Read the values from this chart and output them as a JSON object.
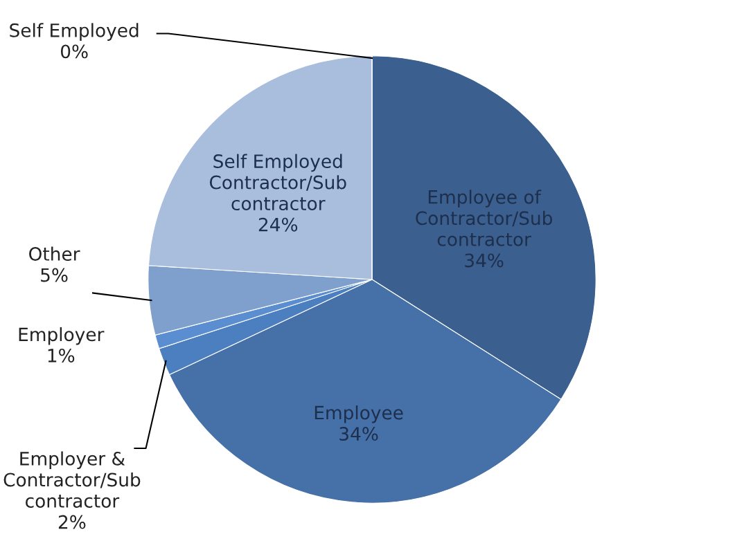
{
  "chart_data": {
    "type": "pie",
    "categories": [
      "Employee of Contractor/Sub contractor",
      "Employee",
      "Employer & Contractor/Sub contractor",
      "Employer",
      "Other",
      "Self Employed Contractor/Sub contractor",
      "Self Employed"
    ],
    "values": [
      34,
      34,
      2,
      1,
      5,
      24,
      0
    ],
    "value_labels": [
      "34%",
      "34%",
      "2%",
      "1%",
      "5%",
      "24%",
      "0%"
    ],
    "colors": [
      "#3b5f8e",
      "#4570a8",
      "#4b7fc0",
      "#5a8ed0",
      "#7f9fcc",
      "#a9bddc",
      "#c9d5e9"
    ]
  }
}
